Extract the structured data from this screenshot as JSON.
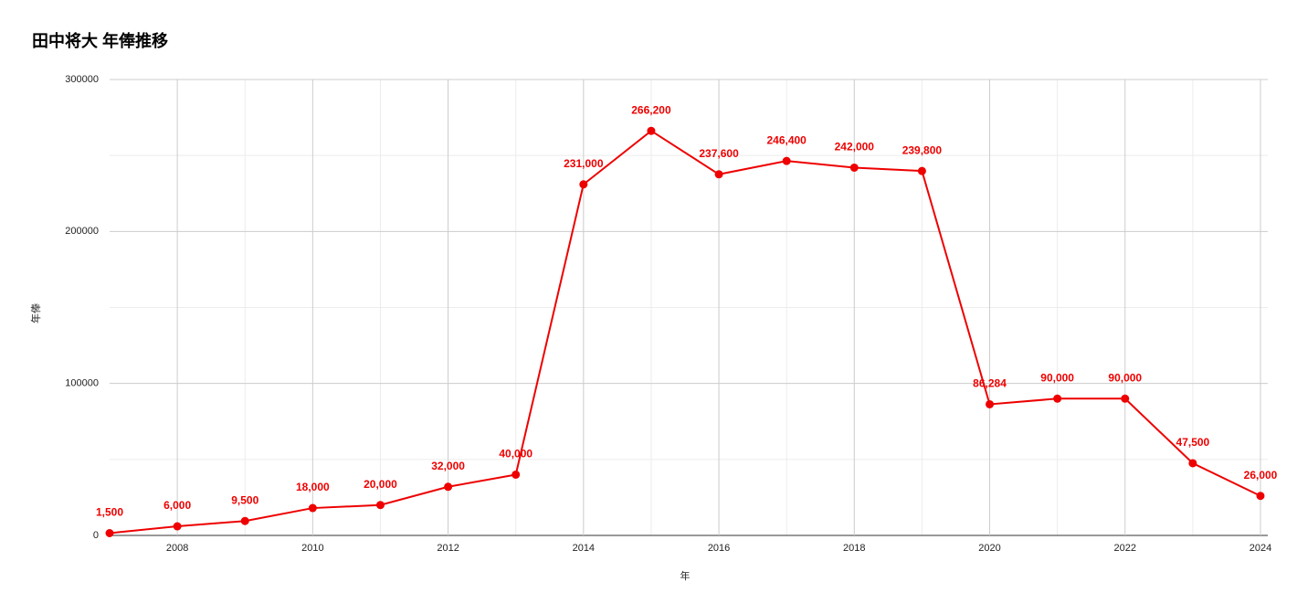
{
  "chart_data": {
    "type": "line",
    "title": "田中将大 年俸推移",
    "x_label": "年",
    "y_label": "年俸",
    "x": [
      2007,
      2008,
      2009,
      2010,
      2011,
      2012,
      2013,
      2014,
      2015,
      2016,
      2017,
      2018,
      2019,
      2020,
      2021,
      2022,
      2023,
      2024
    ],
    "series": [
      {
        "name": "年俸",
        "color": "#ee0000",
        "values": [
          1500,
          6000,
          9500,
          18000,
          20000,
          32000,
          40000,
          231000,
          266200,
          237600,
          246400,
          242000,
          239800,
          86284,
          90000,
          90000,
          47500,
          26000
        ],
        "value_labels": [
          "1,500",
          "6,000",
          "9,500",
          "18,000",
          "20,000",
          "32,000",
          "40,000",
          "231,000",
          "266,200",
          "237,600",
          "246,400",
          "242,000",
          "239,800",
          "86,284",
          "90,000",
          "90,000",
          "47,500",
          "26,000"
        ]
      }
    ],
    "xlim": [
      2007,
      2024
    ],
    "xticks": [
      2008,
      2010,
      2012,
      2014,
      2016,
      2018,
      2020,
      2022,
      2024
    ],
    "minor_xticks": [
      2009,
      2011,
      2013,
      2015,
      2017,
      2019,
      2021,
      2023
    ],
    "ylim": [
      0,
      300000
    ],
    "yticks": [
      0,
      100000,
      200000,
      300000
    ],
    "minor_yticks": [
      50000,
      150000,
      250000
    ],
    "grid": true
  }
}
